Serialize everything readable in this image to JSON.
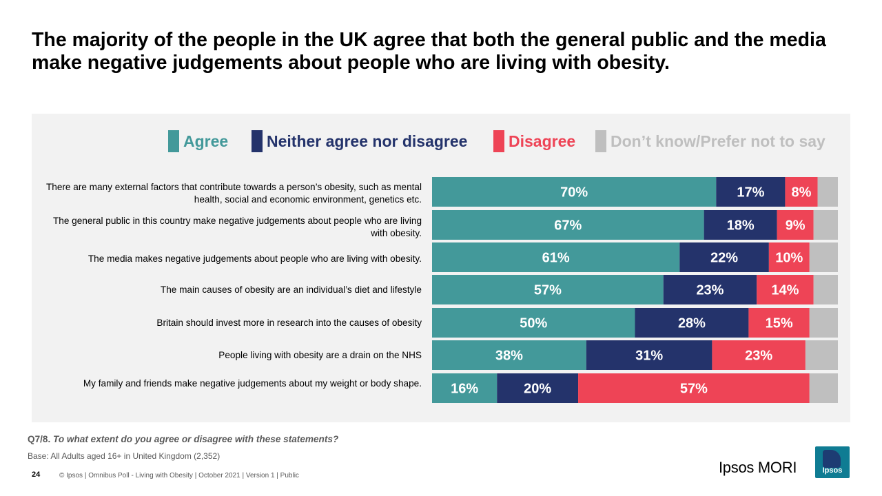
{
  "title": "The majority of the people in the UK agree that both the general public and the media make negative judgements about people who are living with obesity.",
  "colors": {
    "agree": "#43999a",
    "neither": "#24336b",
    "disagree": "#ee4456",
    "dont_know": "#bfbfbf"
  },
  "legend": [
    {
      "label": "Agree",
      "color": "#43999a"
    },
    {
      "label": "Neither agree nor disagree",
      "color": "#24336b"
    },
    {
      "label": "Disagree",
      "color": "#ee4456"
    },
    {
      "label": "Don’t know/Prefer not to say",
      "color": "#bfbfbf"
    }
  ],
  "chart_data": {
    "type": "bar",
    "orientation": "horizontal",
    "stacked": true,
    "xlim": [
      0,
      100
    ],
    "legend_position": "top",
    "categories": [
      "There are many external factors that contribute towards a person’s obesity, such as mental health, social and economic environment, genetics etc.",
      "The general public in this country make negative judgements about people who are living with obesity.",
      "The media makes negative judgements about people who are living with obesity.",
      "The main causes of obesity are an individual’s diet and lifestyle",
      "Britain should invest more in research into the causes of obesity",
      "People living with obesity are a drain on the NHS",
      "My family and friends make negative judgements about my weight or body shape."
    ],
    "series": [
      {
        "name": "Agree",
        "values": [
          70,
          67,
          61,
          57,
          50,
          38,
          16
        ],
        "labels": [
          "70%",
          "67%",
          "61%",
          "57%",
          "50%",
          "38%",
          "16%"
        ]
      },
      {
        "name": "Neither agree nor disagree",
        "values": [
          17,
          18,
          22,
          23,
          28,
          31,
          20
        ],
        "labels": [
          "17%",
          "18%",
          "22%",
          "23%",
          "28%",
          "31%",
          "20%"
        ]
      },
      {
        "name": "Disagree",
        "values": [
          8,
          9,
          10,
          14,
          15,
          23,
          57
        ],
        "labels": [
          "8%",
          "9%",
          "10%",
          "14%",
          "15%",
          "23%",
          "57%"
        ]
      },
      {
        "name": "Don’t know/Prefer not to say",
        "values": [
          5,
          6,
          7,
          6,
          7,
          8,
          7
        ],
        "labels": [
          "",
          "",
          "",
          "",
          "",
          "",
          ""
        ]
      }
    ]
  },
  "question": {
    "prefix": "Q7/8. ",
    "text": "To what extent do you agree or disagree with these statements?"
  },
  "base": {
    "label": "Base",
    "text": ": All Adults aged 16+ in United Kingdom (2,352)"
  },
  "page_number": "24",
  "footer": "© Ipsos | Omnibus Poll - Living with Obesity | October 2021 | Version 1 | Public",
  "brand": {
    "name": "Ipsos MORI",
    "logo_text": "Ipsos"
  }
}
